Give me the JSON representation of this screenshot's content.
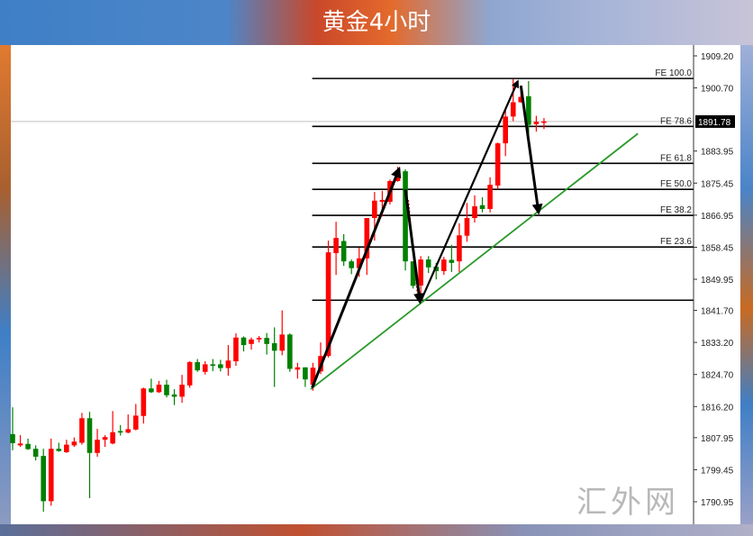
{
  "title": "黄金4小时",
  "watermark": "汇外网",
  "chart_data": {
    "type": "candlestick",
    "title": "黄金4小时",
    "xlabel": "",
    "ylabel": "",
    "ylim": [
      1788.0,
      1912.0
    ],
    "y_ticks": [
      "1909.20",
      "1900.70",
      "1891.78",
      "1883.95",
      "1875.45",
      "1866.95",
      "1858.45",
      "1849.95",
      "1841.70",
      "1833.20",
      "1824.70",
      "1816.20",
      "1807.95",
      "1799.45",
      "1790.95"
    ],
    "current_price": "1891.78",
    "colors": {
      "up": "#ff0000",
      "down": "#008000",
      "fe_line": "#000000",
      "trendline": "#2a9a2a",
      "arrow": "#000000",
      "current_price_line": "#c0c0c0"
    },
    "candles": [
      [
        1808.9,
        1816.0,
        1804.6,
        1806.5
      ],
      [
        1805.9,
        1808.6,
        1805.5,
        1806.4
      ],
      [
        1806.3,
        1807.7,
        1804.7,
        1804.9
      ],
      [
        1805.0,
        1805.9,
        1801.9,
        1802.9
      ],
      [
        1803.1,
        1805.0,
        1788.3,
        1791.1
      ],
      [
        1791.1,
        1807.7,
        1789.9,
        1805.0
      ],
      [
        1805.0,
        1806.6,
        1804.2,
        1804.4
      ],
      [
        1804.1,
        1807.4,
        1803.9,
        1806.1
      ],
      [
        1805.9,
        1808.0,
        1805.5,
        1806.9
      ],
      [
        1806.6,
        1814.5,
        1806.1,
        1813.1
      ],
      [
        1813.1,
        1814.8,
        1791.9,
        1803.9
      ],
      [
        1803.9,
        1810.3,
        1802.9,
        1807.4
      ],
      [
        1807.4,
        1808.6,
        1805.5,
        1808.1
      ],
      [
        1806.4,
        1815.0,
        1806.2,
        1809.4
      ],
      [
        1809.7,
        1811.3,
        1808.5,
        1809.3
      ],
      [
        1809.3,
        1814.1,
        1809.1,
        1810.2
      ],
      [
        1810.1,
        1816.9,
        1809.9,
        1813.8
      ],
      [
        1813.7,
        1821.2,
        1811.7,
        1821.0
      ],
      [
        1821.0,
        1823.6,
        1819.8,
        1820.0
      ],
      [
        1820.0,
        1823.0,
        1819.8,
        1822.0
      ],
      [
        1822.0,
        1823.3,
        1818.6,
        1819.2
      ],
      [
        1819.4,
        1820.8,
        1816.6,
        1818.8
      ],
      [
        1818.8,
        1824.6,
        1817.2,
        1822.0
      ],
      [
        1821.8,
        1828.2,
        1821.2,
        1828.0
      ],
      [
        1828.0,
        1828.8,
        1825.4,
        1825.8
      ],
      [
        1825.4,
        1828.2,
        1824.7,
        1827.4
      ],
      [
        1827.4,
        1828.8,
        1825.6,
        1827.0
      ],
      [
        1827.4,
        1828.6,
        1825.5,
        1826.4
      ],
      [
        1826.4,
        1832.5,
        1824.4,
        1828.4
      ],
      [
        1828.2,
        1835.6,
        1827.0,
        1834.5
      ],
      [
        1834.5,
        1834.8,
        1830.8,
        1832.5
      ],
      [
        1832.8,
        1834.5,
        1831.3,
        1834.0
      ],
      [
        1834.0,
        1834.9,
        1833.2,
        1834.4
      ],
      [
        1834.4,
        1835.7,
        1830.0,
        1832.8
      ],
      [
        1833.0,
        1837.2,
        1821.4,
        1831.0
      ],
      [
        1831.0,
        1841.7,
        1829.8,
        1835.3
      ],
      [
        1835.3,
        1835.6,
        1825.4,
        1826.2
      ],
      [
        1826.0,
        1827.8,
        1823.6,
        1826.6
      ],
      [
        1826.6,
        1826.6,
        1821.4,
        1823.4
      ],
      [
        1822.0,
        1827.8,
        1820.4,
        1826.5
      ],
      [
        1825.5,
        1833.2,
        1824.8,
        1829.6
      ],
      [
        1829.6,
        1860.2,
        1829.2,
        1857.1
      ],
      [
        1856.9,
        1865.2,
        1851.1,
        1860.9
      ],
      [
        1860.1,
        1861.9,
        1853.5,
        1854.7
      ],
      [
        1854.7,
        1855.2,
        1851.3,
        1852.9
      ],
      [
        1852.9,
        1858.3,
        1850.6,
        1855.5
      ],
      [
        1855.5,
        1866.2,
        1851.1,
        1866.2
      ],
      [
        1866.2,
        1873.1,
        1860.2,
        1870.8
      ],
      [
        1870.5,
        1873.4,
        1866.6,
        1871.0
      ],
      [
        1870.5,
        1876.4,
        1869.8,
        1876.0
      ],
      [
        1876.0,
        1879.8,
        1875.8,
        1878.6
      ],
      [
        1878.6,
        1879.1,
        1852.3,
        1854.7
      ],
      [
        1854.7,
        1854.7,
        1847.5,
        1848.2
      ],
      [
        1848.3,
        1856.1,
        1843.5,
        1855.2
      ],
      [
        1855.2,
        1856.1,
        1851.6,
        1853.1
      ],
      [
        1853.3,
        1854.3,
        1849.9,
        1852.1
      ],
      [
        1852.1,
        1855.9,
        1851.1,
        1855.2
      ],
      [
        1855.1,
        1859.1,
        1851.9,
        1854.3
      ],
      [
        1854.7,
        1864.8,
        1851.9,
        1861.6
      ],
      [
        1861.5,
        1870.2,
        1859.9,
        1866.2
      ],
      [
        1866.2,
        1872.2,
        1865.0,
        1869.3
      ],
      [
        1869.6,
        1871.7,
        1867.7,
        1868.6
      ],
      [
        1868.6,
        1877.0,
        1867.7,
        1875.0
      ],
      [
        1874.8,
        1886.2,
        1873.8,
        1886.0
      ],
      [
        1886.0,
        1894.9,
        1882.6,
        1893.1
      ],
      [
        1893.1,
        1903.0,
        1891.9,
        1896.9
      ],
      [
        1896.9,
        1900.1,
        1896.8,
        1898.3
      ],
      [
        1898.5,
        1902.5,
        1887.9,
        1890.9
      ],
      [
        1891.1,
        1893.3,
        1889.1,
        1891.7
      ],
      [
        1891.5,
        1892.7,
        1889.8,
        1891.8
      ]
    ],
    "candle_fields": [
      "open",
      "high",
      "low",
      "close"
    ],
    "fibonacci_expansion": {
      "start_bar": 39.9,
      "levels": [
        {
          "label": "FE 100.0",
          "price": 1903.2
        },
        {
          "label": "FE 78.6",
          "price": 1890.5
        },
        {
          "label": "FE 61.8",
          "price": 1880.7
        },
        {
          "label": "FE 50.0",
          "price": 1873.8
        },
        {
          "label": "FE 38.2",
          "price": 1866.9
        },
        {
          "label": "FE 23.6",
          "price": 1858.5
        },
        {
          "label": "",
          "price": 1844.4
        }
      ]
    },
    "arrows": [
      {
        "from": [
          39.9,
          1821.2
        ],
        "to": [
          51.2,
          1879.3
        ],
        "weight": "thick"
      },
      {
        "from": [
          52.0,
          1873.8
        ],
        "to": [
          53.9,
          1843.9
        ],
        "weight": "thick"
      },
      {
        "from": [
          54.1,
          1844.6
        ],
        "to": [
          66.6,
          1902.5
        ],
        "weight": "medium"
      },
      {
        "from": [
          67.0,
          1901.3
        ],
        "to": [
          69.3,
          1867.6
        ],
        "weight": "thick"
      }
    ],
    "trendline": {
      "from": [
        39.7,
        1820.8
      ],
      "to": [
        82.2,
        1888.6
      ]
    },
    "dotted_lines": [
      {
        "from": [
          40.2,
          1822.5
        ],
        "to": [
          51.0,
          1877.5
        ]
      },
      {
        "from": [
          52.4,
          1871.0
        ],
        "to": [
          53.6,
          1845.0
        ]
      }
    ]
  }
}
